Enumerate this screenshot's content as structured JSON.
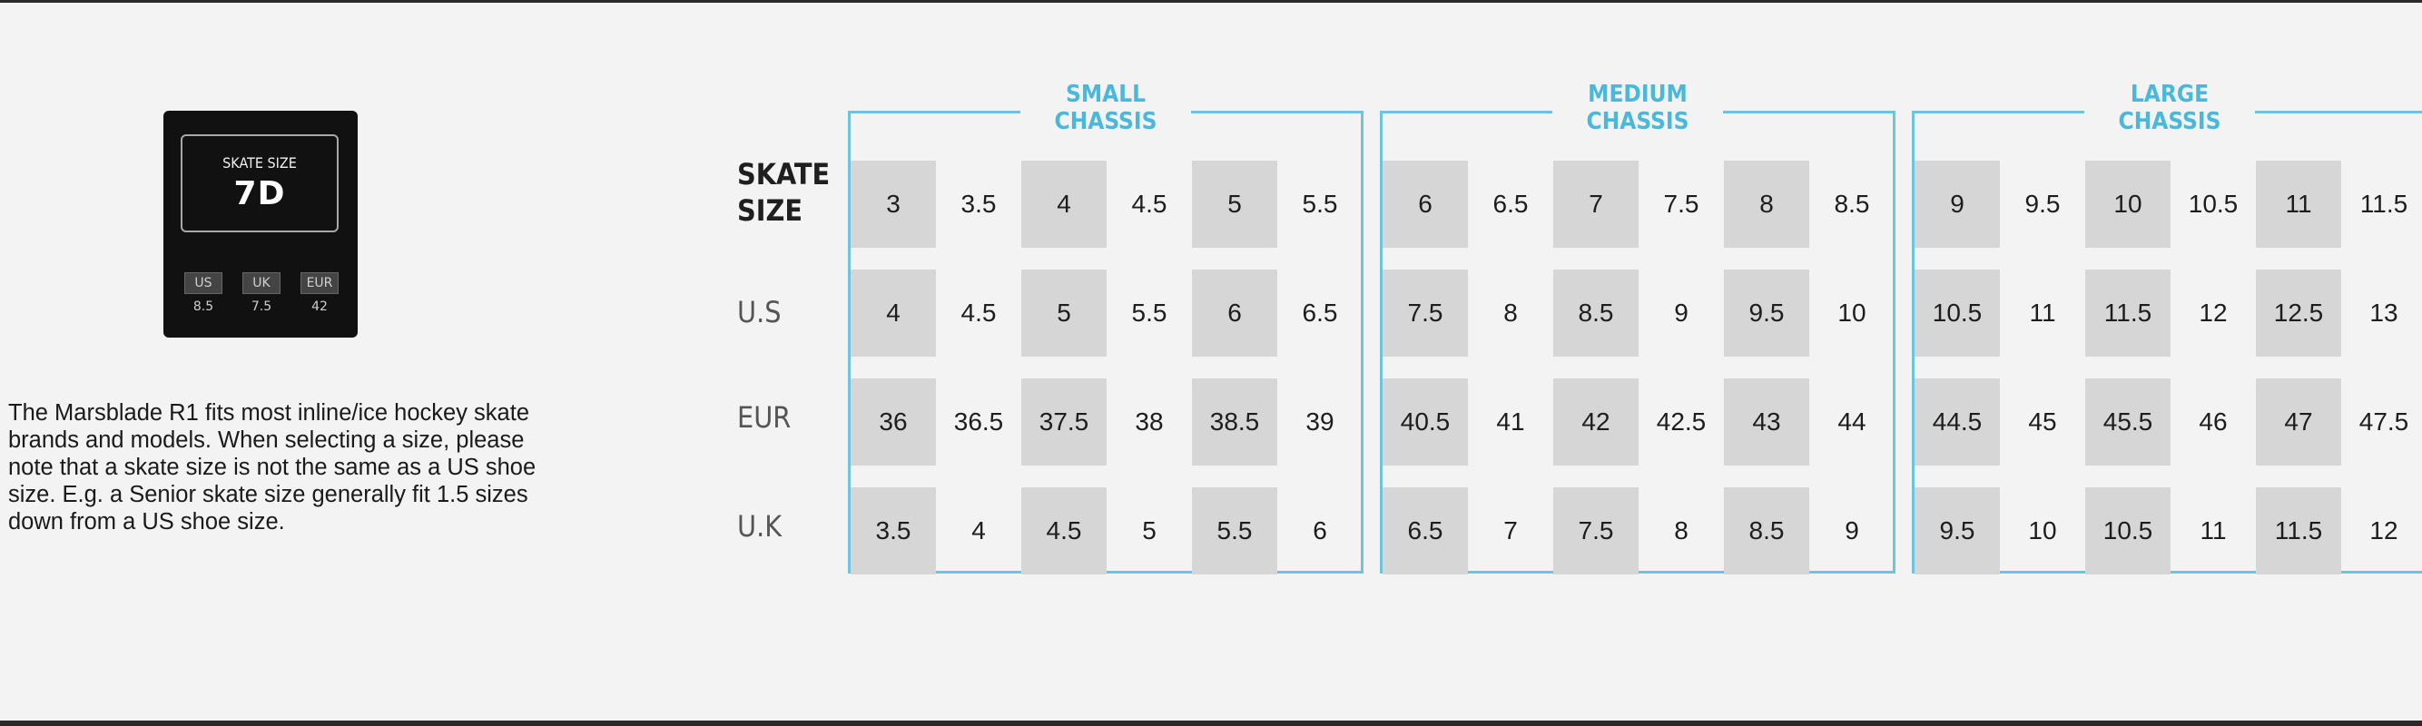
{
  "label": {
    "title": "SKATE SIZE",
    "size": "7D",
    "systems": [
      {
        "name": "US",
        "value": "8.5"
      },
      {
        "name": "UK",
        "value": "7.5"
      },
      {
        "name": "EUR",
        "value": "42"
      }
    ]
  },
  "description": "The Marsblade R1 fits most inline/ice hockey skate brands and models. When selecting a size, please note that a skate size is not the same as a US shoe size. E.g. a Senior skate size generally fit 1.5 sizes down from a US shoe size.",
  "row_labels": {
    "skate_line1": "SKATE",
    "skate_line2": "SIZE",
    "us": "U.S",
    "eur": "EUR",
    "uk": "U.K"
  },
  "colors": {
    "accent": "#4ab8da",
    "border": "#6ec3df",
    "shade": "#d6d6d6",
    "label_bg": "#111111"
  },
  "chassis": [
    {
      "title_line1": "SMALL",
      "title_line2": "CHASSIS",
      "skate": [
        "3",
        "3.5",
        "4",
        "4.5",
        "5",
        "5.5"
      ],
      "us": [
        "4",
        "4.5",
        "5",
        "5.5",
        "6",
        "6.5"
      ],
      "eur": [
        "36",
        "36.5",
        "37.5",
        "38",
        "38.5",
        "39"
      ],
      "uk": [
        "3.5",
        "4",
        "4.5",
        "5",
        "5.5",
        "6"
      ]
    },
    {
      "title_line1": "MEDIUM",
      "title_line2": "CHASSIS",
      "skate": [
        "6",
        "6.5",
        "7",
        "7.5",
        "8",
        "8.5"
      ],
      "us": [
        "7.5",
        "8",
        "8.5",
        "9",
        "9.5",
        "10"
      ],
      "eur": [
        "40.5",
        "41",
        "42",
        "42.5",
        "43",
        "44"
      ],
      "uk": [
        "6.5",
        "7",
        "7.5",
        "8",
        "8.5",
        "9"
      ]
    },
    {
      "title_line1": "LARGE",
      "title_line2": "CHASSIS",
      "skate": [
        "9",
        "9.5",
        "10",
        "10.5",
        "11",
        "11.5"
      ],
      "us": [
        "10.5",
        "11",
        "11.5",
        "12",
        "12.5",
        "13"
      ],
      "eur": [
        "44.5",
        "45",
        "45.5",
        "46",
        "47",
        "47.5"
      ],
      "uk": [
        "9.5",
        "10",
        "10.5",
        "11",
        "11.5",
        "12"
      ]
    }
  ]
}
